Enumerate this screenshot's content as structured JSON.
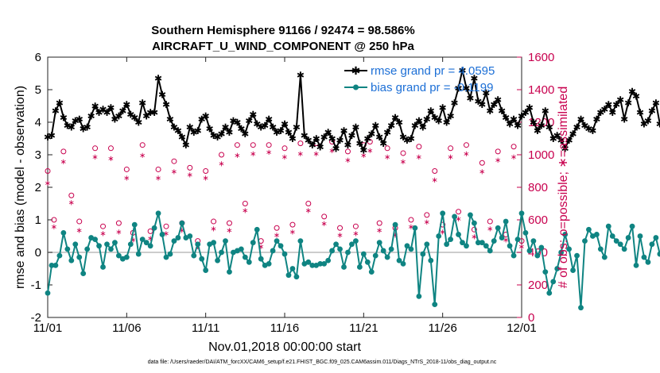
{
  "figure": {
    "title_line1": "Southern Hemisphere 91166 / 92474 = 98.586%",
    "title_line2": "AIRCRAFT_U_WIND_COMPONENT @ 250 hPa",
    "footnote": "data file: /Users/raeder/DAI/ATM_forcXX/CAM6_setup/f.e21.FHIST_BGC.f09_025.CAM6assim.011/Diags_NTrS_2018-11/obs_diag_output.nc"
  },
  "colors": {
    "rmse": "#000000",
    "bias": "#0f8482",
    "obs": "#c8004e",
    "legend_text": "#1c6fd6",
    "zero_line": "#bbbbbb"
  },
  "chart_data": {
    "type": "line",
    "xlabel": "Nov.01,2018 00:00:00 start",
    "ylabel": "rmse and bias (model - observation)",
    "y2label": "# of obs: o=possible; ∗=assimilated",
    "xlim": [
      0,
      30
    ],
    "ylim": [
      -2,
      6
    ],
    "y2lim": [
      0,
      1600
    ],
    "x_ticks": [
      0,
      5,
      10,
      15,
      20,
      25,
      30
    ],
    "x_tick_labels": [
      "11/01",
      "11/06",
      "11/11",
      "11/16",
      "11/21",
      "11/26",
      "12/01"
    ],
    "y_ticks": [
      "-2",
      "-1",
      "0",
      "1",
      "2",
      "3",
      "4",
      "5",
      "6"
    ],
    "y2_ticks": [
      "0",
      "200",
      "400",
      "600",
      "800",
      "1000",
      "1200",
      "1400",
      "1600"
    ],
    "legend": [
      "rmse grand pr = 4.0595",
      "bias grand pr = -0.1199"
    ],
    "step_days": 0.25,
    "series": [
      {
        "name": "rmse",
        "axis": "left",
        "marker": "star-line",
        "values": [
          3.55,
          3.6,
          4.35,
          4.6,
          4.15,
          3.9,
          3.85,
          4.05,
          4.1,
          3.8,
          3.85,
          4.2,
          4.5,
          4.3,
          4.4,
          4.3,
          4.45,
          4.1,
          4.2,
          4.35,
          4.55,
          4.25,
          4.15,
          4.0,
          4.6,
          4.2,
          4.3,
          4.3,
          5.35,
          4.85,
          4.55,
          4.1,
          3.85,
          3.75,
          3.55,
          3.3,
          3.85,
          3.7,
          3.75,
          4.1,
          4.2,
          3.8,
          3.6,
          3.55,
          3.65,
          3.85,
          3.7,
          4.05,
          4.0,
          3.8,
          3.65,
          4.05,
          4.25,
          3.95,
          3.85,
          3.9,
          4.1,
          3.85,
          3.7,
          3.75,
          3.95,
          3.7,
          3.5,
          3.85,
          5.45,
          3.6,
          3.45,
          3.3,
          3.5,
          3.25,
          3.55,
          3.7,
          3.5,
          3.2,
          3.45,
          3.75,
          3.3,
          3.6,
          3.85,
          3.35,
          3.15,
          3.5,
          3.65,
          3.9,
          3.55,
          3.35,
          3.7,
          3.9,
          4.15,
          4.0,
          3.55,
          3.45,
          3.5,
          3.9,
          4.05,
          3.85,
          4.1,
          4.35,
          4.15,
          4.05,
          4.45,
          4.0,
          4.2,
          4.6,
          5.05,
          5.6,
          5.05,
          4.75,
          5.35,
          4.65,
          4.55,
          4.9,
          4.35,
          4.55,
          4.7,
          4.35,
          4.15,
          3.95,
          4.1,
          3.9,
          4.2,
          4.3,
          4.45,
          4.0,
          3.75,
          3.9,
          4.35,
          3.85,
          3.5,
          3.6,
          3.45,
          3.2,
          3.45,
          3.65,
          3.85,
          4.1,
          3.9,
          3.8,
          3.75,
          4.1,
          4.3,
          4.4,
          4.55,
          4.3,
          4.55,
          4.7,
          4.1,
          4.6,
          4.95,
          4.8,
          4.3,
          3.95,
          4.05,
          4.35,
          4.6,
          3.95,
          3.45,
          4.1,
          4.05,
          4.0
        ]
      },
      {
        "name": "bias",
        "axis": "left",
        "marker": "dot-line",
        "values": [
          -1.25,
          -0.4,
          -0.4,
          -0.1,
          0.6,
          0.1,
          -0.25,
          0.25,
          -0.15,
          -0.65,
          0.1,
          0.45,
          0.4,
          0.2,
          -0.45,
          0.25,
          0.1,
          0.3,
          -0.1,
          -0.2,
          -0.15,
          0.25,
          0.85,
          -0.05,
          0.4,
          0.3,
          0.2,
          0.75,
          1.2,
          0.55,
          -0.15,
          -0.05,
          0.35,
          0.45,
          0.9,
          0.45,
          0.5,
          -0.1,
          0.25,
          -0.2,
          -0.55,
          0.25,
          0.3,
          -0.25,
          0.0,
          0.35,
          -0.6,
          0.0,
          0.05,
          0.1,
          -0.15,
          -0.3,
          0.3,
          0.7,
          -0.2,
          -0.4,
          -0.35,
          0.05,
          0.35,
          0.2,
          -0.05,
          -0.7,
          -0.5,
          -0.75,
          0.35,
          -0.35,
          -0.3,
          -0.4,
          -0.4,
          -0.35,
          -0.35,
          -0.25,
          0.05,
          0.25,
          0.1,
          -0.45,
          0.0,
          0.25,
          0.35,
          -0.45,
          -0.05,
          -0.3,
          -0.6,
          -0.1,
          0.3,
          0.05,
          -0.15,
          0.1,
          0.85,
          -0.25,
          -0.35,
          0.2,
          0.1,
          0.75,
          -1.35,
          -0.05,
          0.25,
          -0.25,
          -1.6,
          0.5,
          1.2,
          0.25,
          0.4,
          1.1,
          0.55,
          0.3,
          0.2,
          1.15,
          0.9,
          0.3,
          0.3,
          0.2,
          0.05,
          0.35,
          0.75,
          0.45,
          0.95,
          0.2,
          -0.1,
          0.4,
          1.2,
          0.6,
          0.05,
          0.35,
          -0.1,
          0.15,
          -0.6,
          -1.25,
          -0.9,
          -0.5,
          0.0,
          0.55,
          0.1,
          -0.55,
          -0.1,
          -1.7,
          0.35,
          0.7,
          0.5,
          0.55,
          0.1,
          -0.15,
          0.8,
          0.5,
          0.35,
          0.25,
          0.1,
          0.45,
          0.8,
          -0.4,
          0.5,
          -0.15,
          -0.3,
          0.25,
          0.45,
          -0.05,
          -0.3,
          0.3,
          0.3,
          -0.45
        ]
      },
      {
        "name": "possible",
        "axis": "right",
        "marker": "circle",
        "days": [
          0,
          0.4,
          1,
          1.5,
          2,
          3,
          3.5,
          4,
          4.5,
          5,
          5.4,
          6,
          6.5,
          7,
          7.5,
          8,
          8.5,
          9,
          9.5,
          10,
          10.5,
          11,
          11.5,
          12,
          12.5,
          13,
          13.5,
          14,
          14.5,
          15,
          15.5,
          16,
          16.5,
          17,
          17.5,
          18,
          18.5,
          19,
          19.5,
          20,
          20.4,
          21,
          21.5,
          22,
          22.5,
          23,
          23.5,
          24,
          24.5,
          25,
          25.5,
          26,
          26.5,
          27,
          27.5,
          28,
          28.5,
          29,
          29.5,
          30
        ],
        "values": [
          900,
          600,
          1020,
          750,
          590,
          1040,
          560,
          1040,
          580,
          910,
          520,
          1060,
          530,
          910,
          560,
          960,
          580,
          920,
          470,
          900,
          590,
          1000,
          580,
          1060,
          700,
          1060,
          470,
          1060,
          550,
          1040,
          570,
          1070,
          700,
          1070,
          620,
          1080,
          550,
          1020,
          560,
          1060,
          1080,
          580,
          1040,
          550,
          1010,
          600,
          1050,
          630,
          900,
          570,
          1040,
          650,
          1060,
          540,
          950,
          590,
          1020,
          510,
          1050,
          470
        ]
      },
      {
        "name": "assimilated",
        "axis": "right",
        "marker": "star",
        "days": [
          0,
          0.4,
          1,
          1.5,
          2,
          3,
          3.5,
          4,
          4.5,
          5,
          5.4,
          6,
          6.5,
          7,
          7.5,
          8,
          8.5,
          9,
          9.5,
          10,
          10.5,
          11,
          11.5,
          12,
          12.5,
          13,
          13.5,
          14,
          14.5,
          15,
          15.5,
          16,
          16.5,
          17,
          17.5,
          18,
          18.5,
          19,
          19.5,
          20,
          20.4,
          21,
          21.5,
          22,
          22.5,
          23,
          23.5,
          24,
          24.5,
          25,
          25.5,
          26,
          26.5,
          27,
          27.5,
          28,
          28.5,
          29,
          29.5,
          30
        ],
        "values": [
          830,
          560,
          960,
          710,
          540,
          990,
          520,
          980,
          530,
          860,
          480,
          1000,
          490,
          860,
          520,
          900,
          540,
          880,
          440,
          860,
          550,
          950,
          540,
          1000,
          660,
          1010,
          440,
          1020,
          510,
          990,
          530,
          1010,
          660,
          1010,
          580,
          1030,
          510,
          970,
          520,
          1000,
          1030,
          540,
          990,
          510,
          960,
          560,
          990,
          590,
          850,
          530,
          990,
          610,
          1010,
          500,
          900,
          550,
          970,
          480,
          990,
          440
        ]
      }
    ]
  }
}
